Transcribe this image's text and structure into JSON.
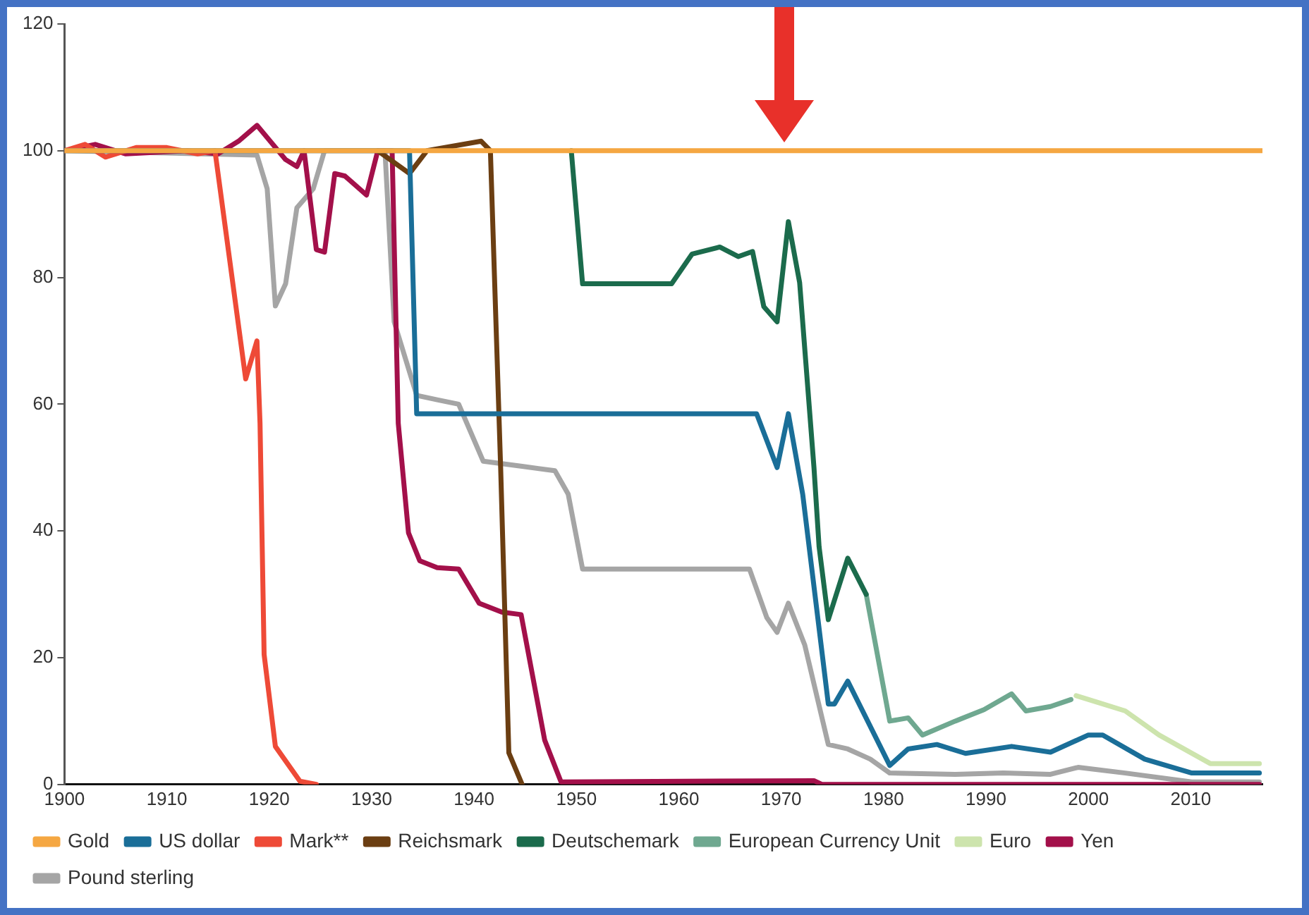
{
  "chart_data": {
    "type": "line",
    "xlim": [
      1900,
      2017
    ],
    "xticks": [
      1900,
      1910,
      1920,
      1930,
      1940,
      1950,
      1960,
      1970,
      1980,
      1990,
      2000,
      2010
    ],
    "ylim": [
      0,
      120
    ],
    "yticks": [
      0,
      20,
      40,
      60,
      80,
      100,
      120
    ],
    "legend": "bottom",
    "marker": "none",
    "series": [
      {
        "name": "Gold",
        "color": "#f5a742",
        "x": [
          1900,
          2017
        ],
        "values": [
          100,
          100
        ]
      },
      {
        "name": "US dollar",
        "color": "#1a6e98",
        "x": [
          1900,
          1933.7,
          1934.4,
          1967.6,
          1969.6,
          1970.7,
          1972.1,
          1974.6,
          1975.2,
          1976.5,
          1980.6,
          1982.4,
          1985.2,
          1988,
          1992.5,
          1996.3,
          2000,
          2001.4,
          2005.5,
          2010.1,
          2016.7
        ],
        "values": [
          100,
          100,
          58.5,
          58.5,
          50,
          58.5,
          45.8,
          12.7,
          12.7,
          16.3,
          3,
          5.6,
          6.3,
          4.9,
          6,
          5.1,
          7.8,
          7.8,
          4,
          1.8,
          1.8
        ]
      },
      {
        "name": "Mark**",
        "color": "#ee4a37",
        "x": [
          1900,
          1902,
          1904,
          1907,
          1910,
          1913,
          1914.7,
          1917.7,
          1918.8,
          1919.1,
          1919.5,
          1920.6,
          1923,
          1924.6
        ],
        "values": [
          100,
          101,
          99,
          100.5,
          100.5,
          99.5,
          100,
          64,
          70,
          57,
          20.5,
          6,
          0.5,
          0
        ]
      },
      {
        "name": "Reichsmark",
        "color": "#6b3e12",
        "x": [
          1930.6,
          1933.7,
          1935.4,
          1940.7,
          1941.6,
          1942.6,
          1943.4,
          1944.7
        ],
        "values": [
          100,
          96.4,
          100,
          101.5,
          100,
          50,
          5,
          0
        ]
      },
      {
        "name": "Deutschemark",
        "color": "#1b6b4c",
        "x": [
          1949.5,
          1950.6,
          1959.3,
          1961.3,
          1964,
          1965.8,
          1967.2,
          1968.3,
          1969.6,
          1970.7,
          1971.8,
          1973.2,
          1973.7,
          1974.6,
          1976.5,
          1978.3
        ],
        "values": [
          100,
          79,
          79,
          83.7,
          84.8,
          83.3,
          84.1,
          75.4,
          73,
          88.8,
          79.2,
          50,
          37.5,
          26,
          35.7,
          30
        ]
      },
      {
        "name": "European Currency Unit",
        "color": "#6fa890",
        "x": [
          1978.3,
          1980.6,
          1982.4,
          1983.8,
          1987,
          1989.8,
          1992.5,
          1993.9,
          1996.3,
          1998.3
        ],
        "values": [
          30,
          10,
          10.5,
          7.8,
          10,
          11.8,
          14.3,
          11.6,
          12.3,
          13.4
        ]
      },
      {
        "name": "Euro",
        "color": "#cde4ad",
        "x": [
          1998.8,
          2000.8,
          2003.6,
          2006.9,
          2011.9,
          2016.7
        ],
        "values": [
          14,
          13,
          11.6,
          7.8,
          3.3,
          3.3
        ]
      },
      {
        "name": "Yen",
        "color": "#a3104a",
        "x": [
          1900,
          1903,
          1906,
          1912,
          1915,
          1917,
          1918.8,
          1921.6,
          1922.7,
          1923.4,
          1924.6,
          1925.4,
          1926.4,
          1927.4,
          1929.5,
          1930.6,
          1932,
          1932.6,
          1933.6,
          1934.7,
          1936.4,
          1938.5,
          1940.5,
          1942.7,
          1944.6,
          1946.9,
          1948.5,
          1973.2,
          1974,
          2016.7
        ],
        "values": [
          100,
          101,
          99.5,
          100,
          99.5,
          101.5,
          104,
          98.6,
          97.5,
          100,
          84.4,
          84,
          96.4,
          96,
          93,
          100,
          100,
          57,
          39.7,
          35.3,
          34.2,
          34,
          28.6,
          27.2,
          26.8,
          7,
          0.4,
          0.6,
          0,
          0
        ]
      },
      {
        "name": "Pound sterling",
        "color": "#a5a5a5",
        "x": [
          1900,
          1918.8,
          1919.8,
          1920.6,
          1921.6,
          1922.7,
          1924.3,
          1925.4,
          1931.3,
          1932.2,
          1934.4,
          1936.4,
          1938.5,
          1940.9,
          1944.7,
          1947.9,
          1949.2,
          1950.6,
          1966.9,
          1968.6,
          1969.6,
          1970.7,
          1972.3,
          1974.6,
          1976.5,
          1978.7,
          1980.6,
          1987,
          1991.7,
          1996.3,
          1999,
          2003.6,
          2010.1,
          2016.7
        ],
        "values": [
          100,
          99.3,
          94,
          75.5,
          79,
          91,
          94,
          100,
          100,
          73,
          61.4,
          60.7,
          60,
          51,
          50.2,
          49.5,
          45.8,
          34,
          34,
          26.3,
          24,
          28.6,
          22,
          6.3,
          5.6,
          4,
          1.8,
          1.6,
          1.8,
          1.6,
          2.7,
          1.8,
          0.4,
          0.4
        ]
      }
    ]
  }
}
